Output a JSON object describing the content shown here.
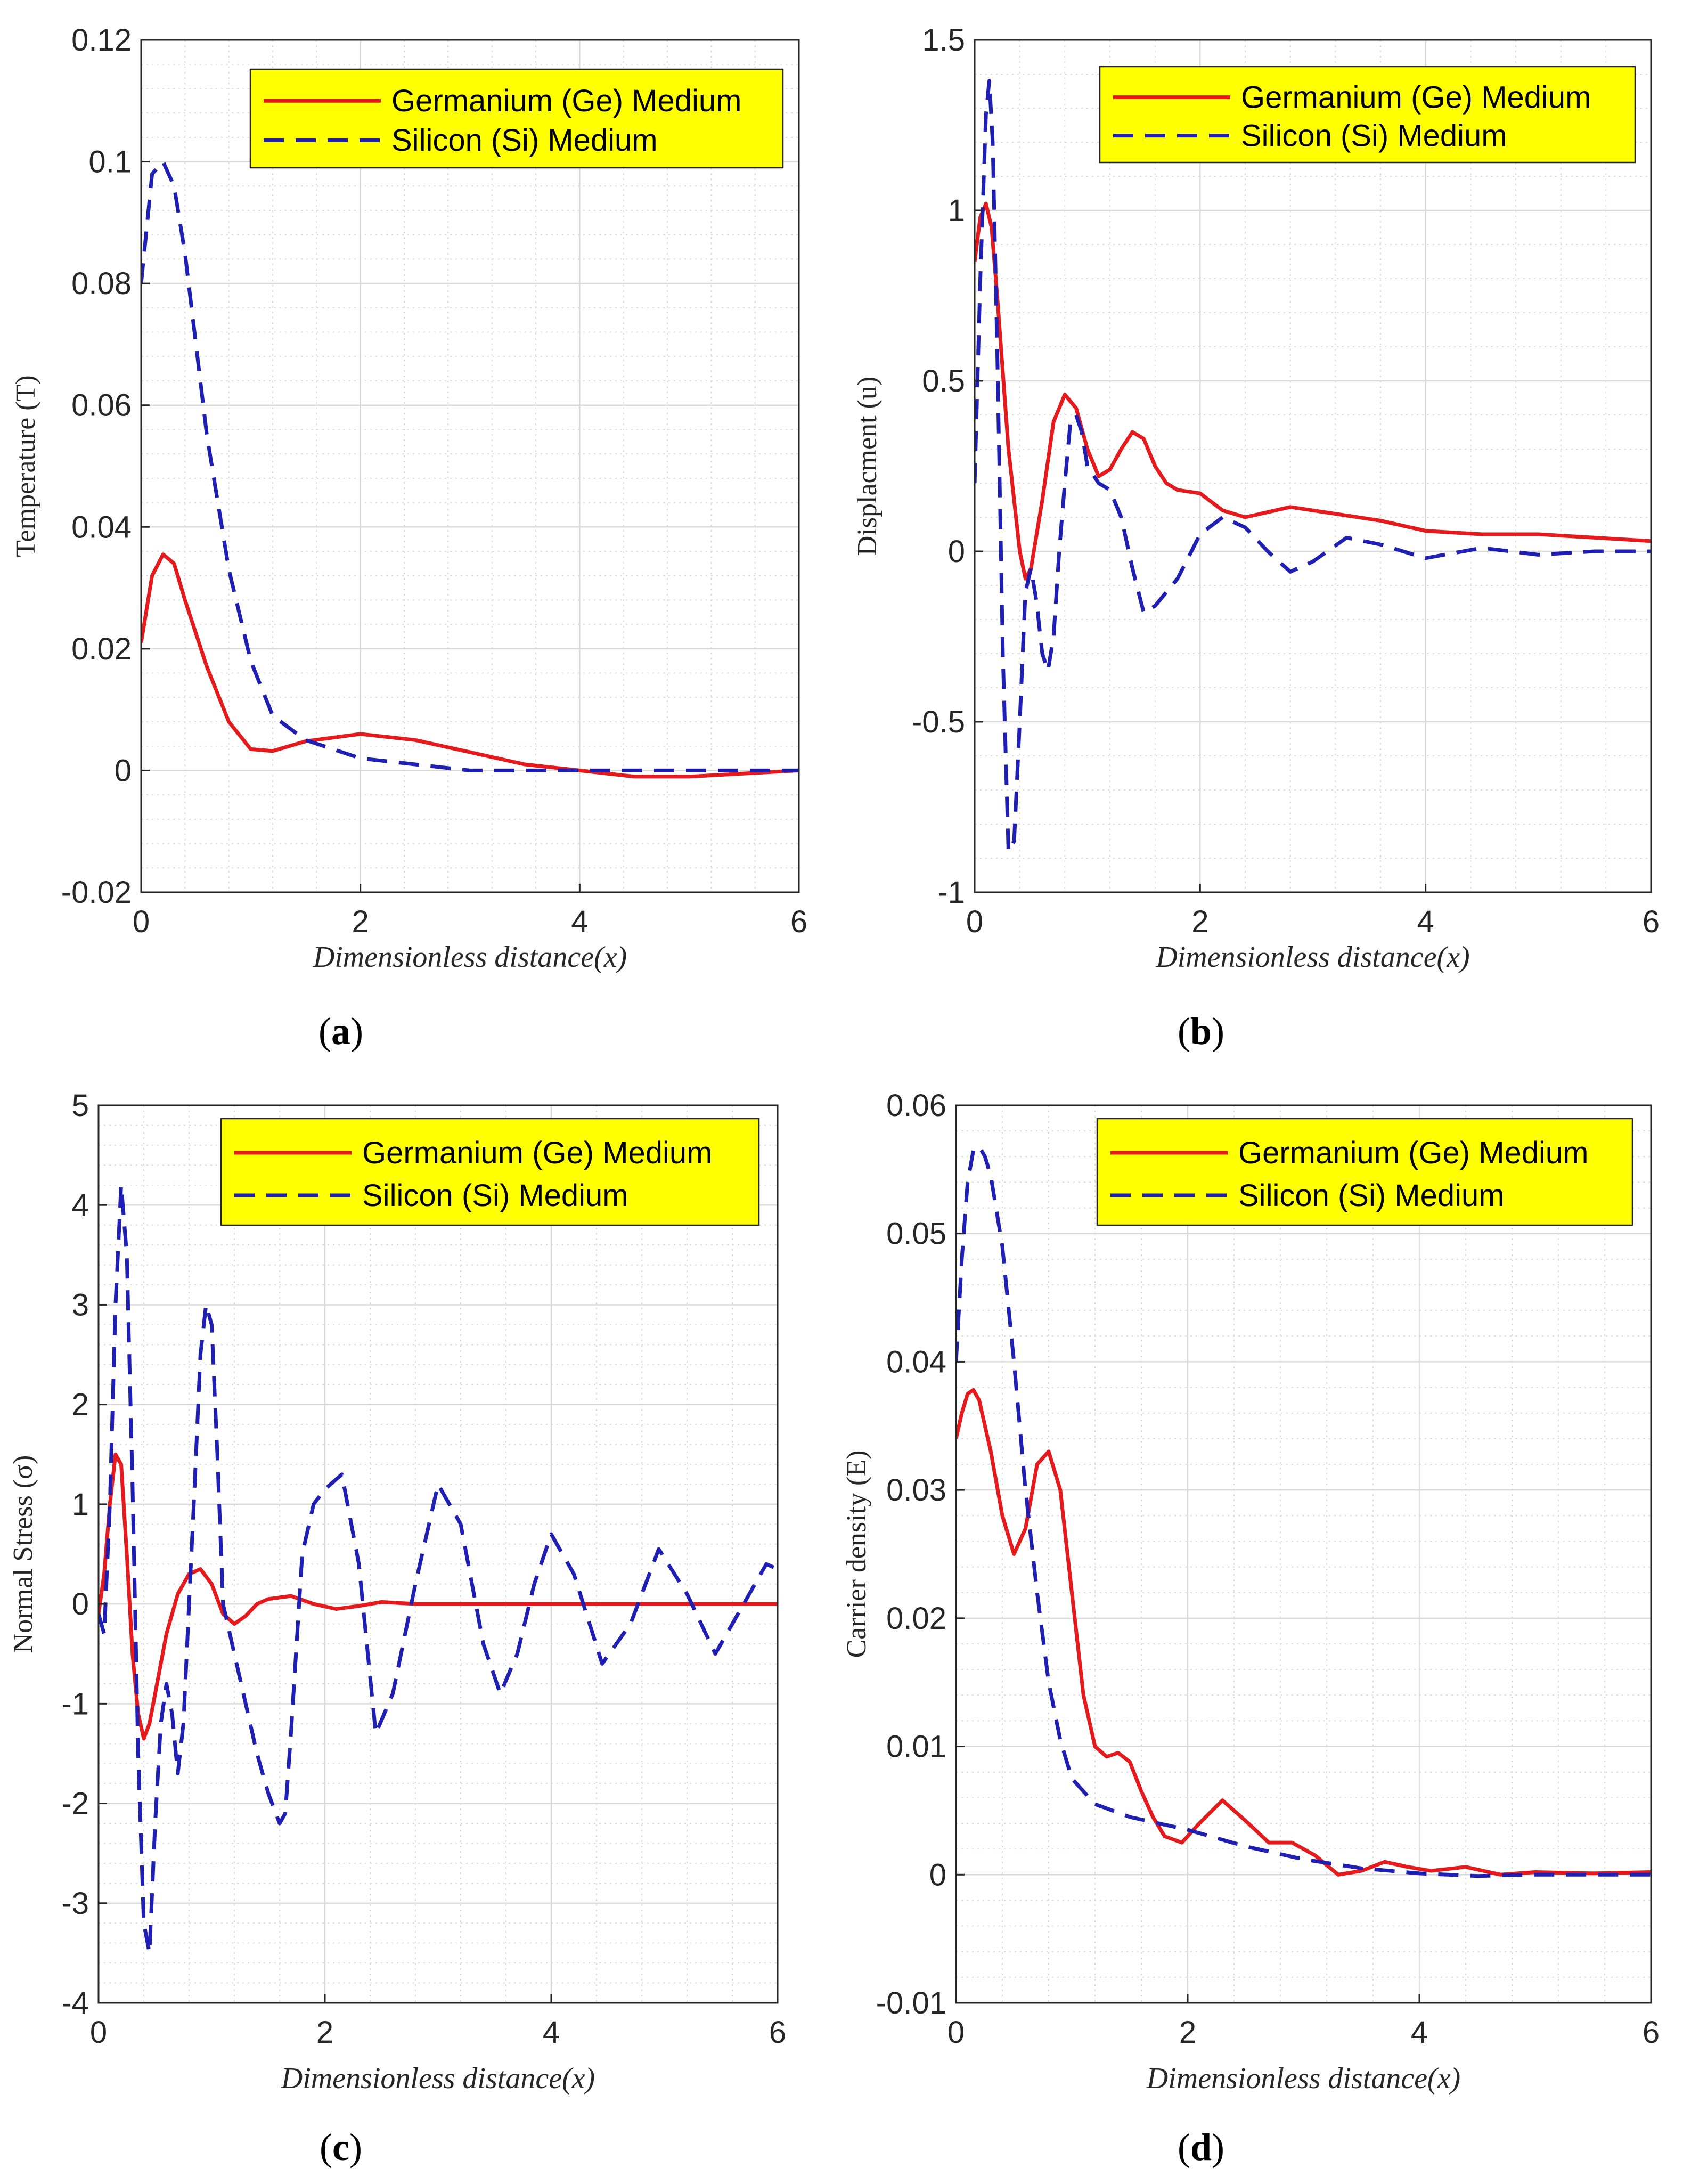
{
  "colors": {
    "germanium": "#e41a1c",
    "silicon": "#1f1fb4",
    "legend_bg": "#ffff00",
    "grid": "#d9d9d9",
    "axis": "#262626"
  },
  "chart_data": [
    {
      "id": "a",
      "type": "line",
      "caption": {
        "open": "(",
        "letter": "a",
        "close": ")"
      },
      "xlabel": "Dimensionless distance(x)",
      "ylabel": "Temperature (T)",
      "xlim": [
        0,
        6
      ],
      "ylim": [
        -0.02,
        0.12
      ],
      "xticks": [
        0,
        2,
        4,
        6
      ],
      "xtick_labels": [
        "0",
        "2",
        "4",
        "6"
      ],
      "yticks": [
        -0.02,
        0,
        0.02,
        0.04,
        0.06,
        0.08,
        0.1,
        0.12
      ],
      "ytick_labels": [
        "-0.02",
        "0",
        "0.02",
        "0.04",
        "0.06",
        "0.08",
        "0.1",
        "0.12"
      ],
      "grid": true,
      "legend": {
        "position": "top-right",
        "entries": [
          "Germanium (Ge) Medium",
          "Silicon (Si) Medium"
        ]
      },
      "series": [
        {
          "name": "Germanium (Ge) Medium",
          "style": "solid",
          "x": [
            0,
            0.1,
            0.2,
            0.3,
            0.4,
            0.6,
            0.8,
            1.0,
            1.2,
            1.5,
            2.0,
            2.5,
            3.0,
            3.5,
            4.0,
            4.5,
            5.0,
            5.5,
            6.0
          ],
          "y": [
            0.021,
            0.032,
            0.0355,
            0.034,
            0.028,
            0.017,
            0.008,
            0.0035,
            0.0032,
            0.0048,
            0.006,
            0.005,
            0.003,
            0.001,
            0.0,
            -0.001,
            -0.001,
            -0.0005,
            0.0
          ]
        },
        {
          "name": "Silicon (Si) Medium",
          "style": "dashed",
          "x": [
            0,
            0.1,
            0.2,
            0.3,
            0.4,
            0.5,
            0.6,
            0.8,
            1.0,
            1.2,
            1.5,
            2.0,
            2.5,
            3.0,
            3.5,
            4.0,
            5.0,
            6.0
          ],
          "y": [
            0.08,
            0.098,
            0.1,
            0.096,
            0.085,
            0.07,
            0.055,
            0.033,
            0.018,
            0.009,
            0.005,
            0.002,
            0.001,
            0.0,
            0.0,
            0.0,
            0.0,
            0.0
          ]
        }
      ]
    },
    {
      "id": "b",
      "type": "line",
      "caption": {
        "open": "(",
        "letter": "b",
        "close": ")"
      },
      "xlabel": "Dimensionless distance(x)",
      "ylabel": "Displacment  (u)",
      "xlim": [
        0,
        6
      ],
      "ylim": [
        -1,
        1.5
      ],
      "xticks": [
        0,
        2,
        4,
        6
      ],
      "xtick_labels": [
        "0",
        "2",
        "4",
        "6"
      ],
      "yticks": [
        -1,
        -0.5,
        0,
        0.5,
        1,
        1.5
      ],
      "ytick_labels": [
        "-1",
        "-0.5",
        "0",
        "0.5",
        "1",
        "1.5"
      ],
      "grid": true,
      "legend": {
        "position": "top-right",
        "entries": [
          "Germanium (Ge) Medium",
          "Silicon (Si) Medium"
        ]
      },
      "series": [
        {
          "name": "Germanium (Ge) Medium",
          "style": "solid",
          "x": [
            0,
            0.05,
            0.1,
            0.15,
            0.2,
            0.3,
            0.4,
            0.45,
            0.5,
            0.6,
            0.7,
            0.8,
            0.9,
            1.0,
            1.1,
            1.2,
            1.3,
            1.4,
            1.5,
            1.6,
            1.7,
            1.8,
            2.0,
            2.2,
            2.4,
            2.8,
            3.2,
            3.6,
            4.0,
            4.5,
            5.0,
            5.5,
            6.0
          ],
          "y": [
            0.85,
            0.98,
            1.02,
            0.95,
            0.75,
            0.3,
            0.0,
            -0.08,
            -0.05,
            0.15,
            0.38,
            0.46,
            0.42,
            0.3,
            0.22,
            0.24,
            0.3,
            0.35,
            0.33,
            0.25,
            0.2,
            0.18,
            0.17,
            0.12,
            0.1,
            0.13,
            0.11,
            0.09,
            0.06,
            0.05,
            0.05,
            0.04,
            0.03
          ]
        },
        {
          "name": "Silicon (Si) Medium",
          "style": "dashed",
          "x": [
            0,
            0.05,
            0.1,
            0.13,
            0.16,
            0.2,
            0.25,
            0.3,
            0.35,
            0.4,
            0.45,
            0.5,
            0.55,
            0.6,
            0.65,
            0.7,
            0.75,
            0.8,
            0.85,
            0.9,
            0.95,
            1.0,
            1.1,
            1.2,
            1.3,
            1.4,
            1.5,
            1.6,
            1.8,
            2.0,
            2.2,
            2.4,
            2.6,
            2.8,
            3.0,
            3.3,
            3.6,
            4.0,
            4.5,
            5.0,
            5.5,
            6.0
          ],
          "y": [
            0.2,
            0.8,
            1.28,
            1.38,
            1.2,
            0.6,
            -0.3,
            -0.88,
            -0.85,
            -0.5,
            -0.12,
            -0.05,
            -0.15,
            -0.3,
            -0.35,
            -0.25,
            0.0,
            0.2,
            0.38,
            0.4,
            0.35,
            0.25,
            0.2,
            0.18,
            0.1,
            -0.05,
            -0.18,
            -0.16,
            -0.08,
            0.05,
            0.1,
            0.07,
            0.0,
            -0.06,
            -0.03,
            0.04,
            0.02,
            -0.02,
            0.01,
            -0.01,
            0.0,
            0.0
          ]
        }
      ]
    },
    {
      "id": "c",
      "type": "line",
      "caption": {
        "open": "(",
        "letter": "c",
        "close": ")"
      },
      "xlabel": "Dimensionless distance(x)",
      "ylabel": "Normal Stress (σ)",
      "xlim": [
        0,
        6
      ],
      "ylim": [
        -4,
        5
      ],
      "xticks": [
        0,
        2,
        4,
        6
      ],
      "xtick_labels": [
        "0",
        "2",
        "4",
        "6"
      ],
      "yticks": [
        -4,
        -3,
        -2,
        -1,
        0,
        1,
        2,
        3,
        4,
        5
      ],
      "ytick_labels": [
        "-4",
        "-3",
        "-2",
        "-1",
        "0",
        "1",
        "2",
        "3",
        "4",
        "5"
      ],
      "grid": true,
      "legend": {
        "position": "top-right",
        "entries": [
          "Germanium (Ge) Medium",
          "Silicon (Si) Medium"
        ]
      },
      "series": [
        {
          "name": "Germanium (Ge) Medium",
          "style": "solid",
          "x": [
            0,
            0.05,
            0.1,
            0.15,
            0.2,
            0.25,
            0.3,
            0.35,
            0.4,
            0.45,
            0.5,
            0.6,
            0.7,
            0.8,
            0.9,
            1.0,
            1.1,
            1.2,
            1.3,
            1.4,
            1.5,
            1.7,
            1.9,
            2.1,
            2.3,
            2.5,
            2.8,
            3.2,
            4.0,
            5.0,
            6.0
          ],
          "y": [
            -0.1,
            0.3,
            1.0,
            1.5,
            1.4,
            0.5,
            -0.5,
            -1.1,
            -1.35,
            -1.2,
            -0.9,
            -0.3,
            0.1,
            0.3,
            0.35,
            0.2,
            -0.1,
            -0.2,
            -0.12,
            0.0,
            0.05,
            0.08,
            0.0,
            -0.05,
            -0.02,
            0.02,
            0.0,
            0.0,
            0.0,
            0.0,
            0.0
          ]
        },
        {
          "name": "Silicon (Si) Medium",
          "style": "dashed",
          "x": [
            0,
            0.05,
            0.1,
            0.15,
            0.2,
            0.25,
            0.3,
            0.35,
            0.4,
            0.45,
            0.5,
            0.55,
            0.6,
            0.65,
            0.7,
            0.75,
            0.8,
            0.85,
            0.9,
            0.95,
            1.0,
            1.05,
            1.1,
            1.2,
            1.3,
            1.4,
            1.5,
            1.6,
            1.65,
            1.7,
            1.8,
            1.9,
            2.0,
            2.15,
            2.3,
            2.45,
            2.6,
            2.8,
            3.0,
            3.2,
            3.4,
            3.55,
            3.7,
            3.85,
            4.0,
            4.2,
            4.45,
            4.7,
            4.95,
            5.2,
            5.45,
            5.7,
            5.9,
            6.0
          ],
          "y": [
            -0.1,
            -0.3,
            1.0,
            3.0,
            4.2,
            3.5,
            1.2,
            -1.5,
            -3.2,
            -3.5,
            -2.2,
            -1.2,
            -0.8,
            -1.1,
            -1.7,
            -1.2,
            0.0,
            1.2,
            2.5,
            3.0,
            2.8,
            1.5,
            0.0,
            -0.5,
            -1.0,
            -1.5,
            -1.9,
            -2.2,
            -2.1,
            -1.3,
            0.5,
            1.0,
            1.15,
            1.3,
            0.4,
            -1.3,
            -0.9,
            0.2,
            1.2,
            0.8,
            -0.4,
            -0.9,
            -0.5,
            0.2,
            0.7,
            0.3,
            -0.6,
            -0.2,
            0.55,
            0.1,
            -0.5,
            0.0,
            0.4,
            0.35
          ]
        }
      ]
    },
    {
      "id": "d",
      "type": "line",
      "caption": {
        "open": "(",
        "letter": "d",
        "close": ")"
      },
      "xlabel": "Dimensionless distance(x)",
      "ylabel": "Carrier density  (E)",
      "xlim": [
        0,
        6
      ],
      "ylim": [
        -0.01,
        0.06
      ],
      "xticks": [
        0,
        2,
        4,
        6
      ],
      "xtick_labels": [
        "0",
        "2",
        "4",
        "6"
      ],
      "yticks": [
        -0.01,
        0,
        0.01,
        0.02,
        0.03,
        0.04,
        0.05,
        0.06
      ],
      "ytick_labels": [
        "-0.01",
        "0",
        "0.01",
        "0.02",
        "0.03",
        "0.04",
        "0.05",
        "0.06"
      ],
      "grid": true,
      "legend": {
        "position": "top-right",
        "entries": [
          "Germanium (Ge) Medium",
          "Silicon (Si) Medium"
        ]
      },
      "series": [
        {
          "name": "Germanium (Ge) Medium",
          "style": "solid",
          "x": [
            0,
            0.05,
            0.1,
            0.15,
            0.2,
            0.3,
            0.4,
            0.5,
            0.6,
            0.7,
            0.8,
            0.9,
            1.0,
            1.1,
            1.2,
            1.3,
            1.4,
            1.5,
            1.6,
            1.7,
            1.8,
            1.95,
            2.1,
            2.3,
            2.5,
            2.7,
            2.9,
            3.1,
            3.3,
            3.5,
            3.7,
            3.9,
            4.1,
            4.4,
            4.7,
            5.0,
            5.5,
            6.0
          ],
          "y": [
            0.034,
            0.036,
            0.0375,
            0.0378,
            0.037,
            0.033,
            0.028,
            0.025,
            0.027,
            0.032,
            0.033,
            0.03,
            0.022,
            0.014,
            0.01,
            0.0092,
            0.0095,
            0.0088,
            0.0065,
            0.0045,
            0.003,
            0.0025,
            0.004,
            0.0058,
            0.0042,
            0.0025,
            0.0025,
            0.0015,
            0.0,
            0.0003,
            0.001,
            0.0006,
            0.0003,
            0.0006,
            0.0,
            0.0002,
            0.0001,
            0.0002
          ]
        },
        {
          "name": "Silicon (Si) Medium",
          "style": "dashed",
          "x": [
            0,
            0.05,
            0.1,
            0.15,
            0.2,
            0.25,
            0.3,
            0.4,
            0.5,
            0.6,
            0.7,
            0.8,
            0.9,
            1.0,
            1.2,
            1.5,
            2.0,
            2.5,
            3.0,
            3.5,
            4.0,
            4.5,
            5.0,
            5.5,
            6.0
          ],
          "y": [
            0.04,
            0.048,
            0.054,
            0.0565,
            0.0568,
            0.056,
            0.0545,
            0.049,
            0.04,
            0.03,
            0.022,
            0.015,
            0.0105,
            0.0075,
            0.0055,
            0.0045,
            0.0035,
            0.0022,
            0.0012,
            0.0005,
            0.0001,
            -0.0001,
            0.0,
            0.0,
            0.0
          ]
        }
      ]
    }
  ]
}
